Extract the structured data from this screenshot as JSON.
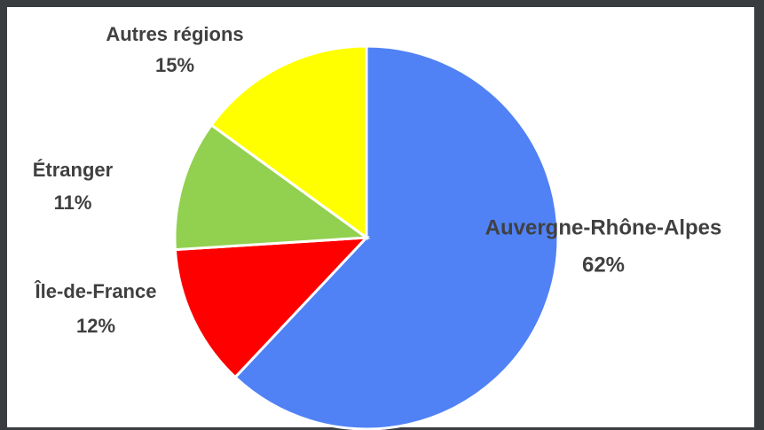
{
  "chart_data": {
    "type": "pie",
    "categories": [
      "Auvergne-Rhône-Alpes",
      "Île-de-France",
      "Étranger",
      "Autres régions"
    ],
    "values": [
      62,
      12,
      11,
      15
    ],
    "value_labels": [
      "62%",
      "12%",
      "11%",
      "15%"
    ],
    "colors": [
      "#5082f5",
      "#ff0000",
      "#92d050",
      "#ffff00"
    ]
  }
}
